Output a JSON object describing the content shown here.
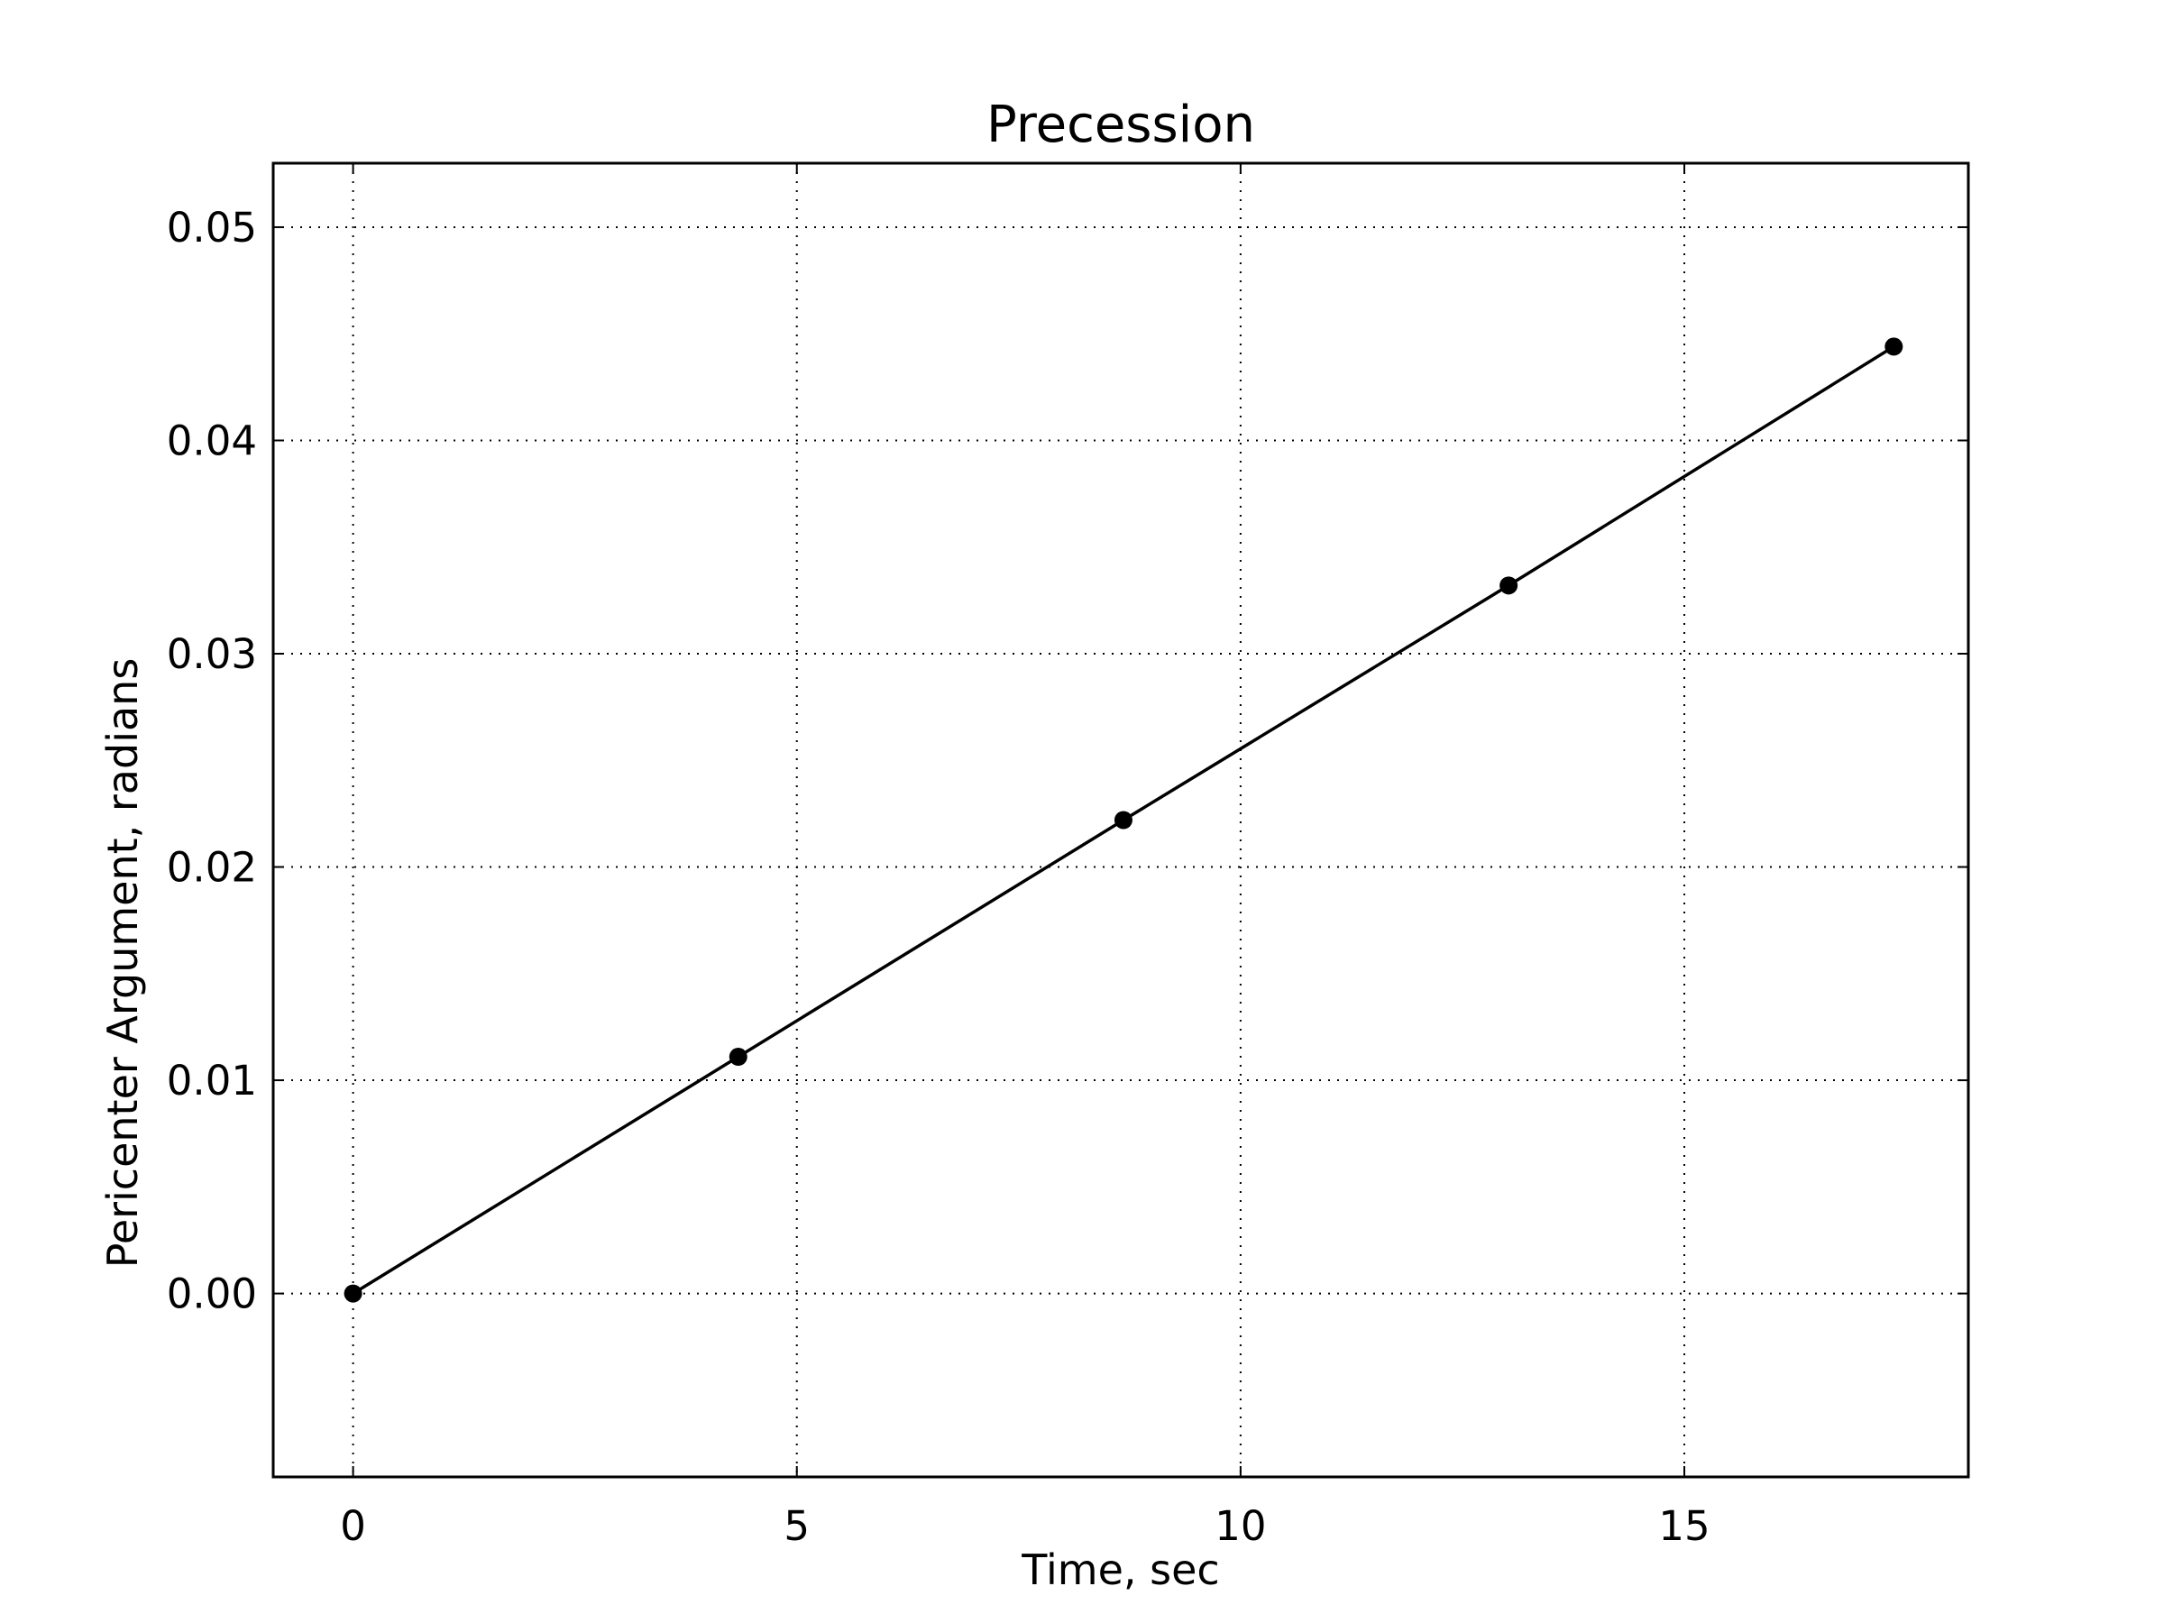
{
  "chart_data": {
    "type": "line",
    "title": "Precession",
    "xlabel": "Time, sec",
    "ylabel": "Pericenter Argument, radians",
    "xlim": [
      -0.9,
      18.2
    ],
    "ylim": [
      -0.0086,
      0.053
    ],
    "x_ticks": [
      0,
      5,
      10,
      15
    ],
    "x_tick_labels": [
      "0",
      "5",
      "10",
      "15"
    ],
    "y_ticks": [
      0.0,
      0.01,
      0.02,
      0.03,
      0.04,
      0.05
    ],
    "y_tick_labels": [
      "0.00",
      "0.01",
      "0.02",
      "0.03",
      "0.04",
      "0.05"
    ],
    "grid": true,
    "grid_style": "dotted",
    "legend": false,
    "series": [
      {
        "color": "#000000",
        "marker": "circle",
        "x": [
          0.0,
          4.34,
          8.68,
          13.02,
          17.36
        ],
        "y": [
          0.0,
          0.0111,
          0.0222,
          0.0332,
          0.0444
        ]
      }
    ]
  }
}
